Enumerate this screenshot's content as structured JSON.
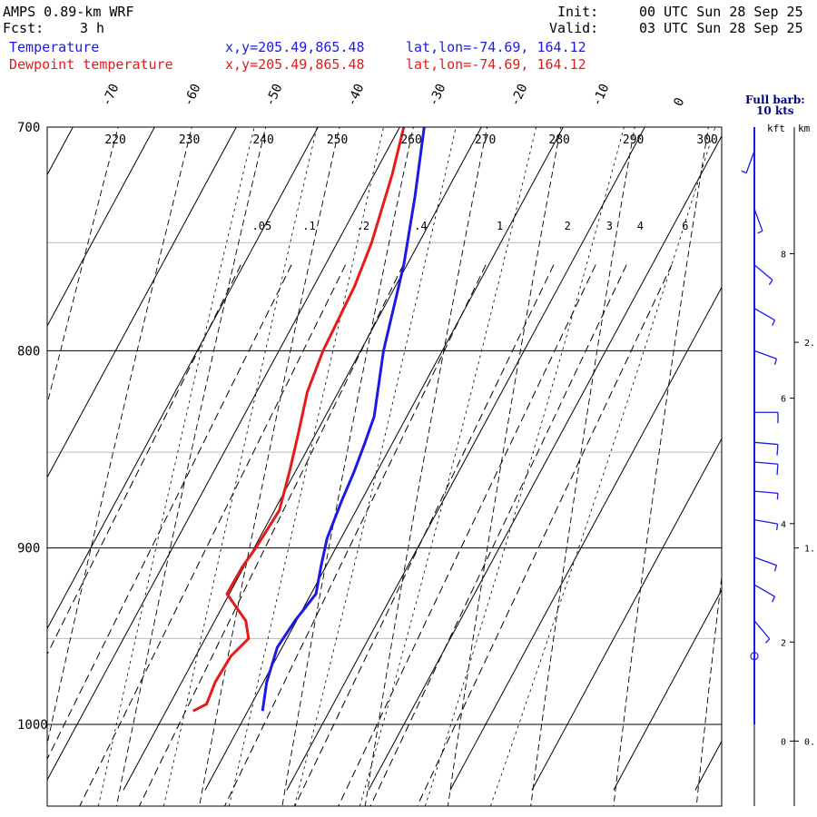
{
  "header": {
    "model": "AMPS 0.89-km WRF",
    "fcst_label": "Fcst:",
    "fcst_value": "3 h",
    "init_label": "Init:",
    "init_value": "00 UTC Sun 28 Sep 25",
    "valid_label": "Valid:",
    "valid_value": "03 UTC Sun 28 Sep 25"
  },
  "legend": [
    {
      "name": "Temperature",
      "xy": "x,y=205.49,865.48",
      "latlon": "lat,lon=-74.69, 164.12",
      "color": "#1a1ae6"
    },
    {
      "name": "Dewpoint temperature",
      "xy": "x,y=205.49,865.48",
      "latlon": "lat,lon=-74.69, 164.12",
      "color": "#e61a1a"
    }
  ],
  "barb_legend": {
    "line1": "Full barb:",
    "line2": "10 kts",
    "color": "#00008b"
  },
  "height_axis": {
    "left_unit": "kft",
    "right_unit": "km"
  },
  "chart_data": {
    "type": "line",
    "chart_kind": "skew-T log-p sounding",
    "y_axis": "pressure (hPa)",
    "ylim": [
      1040,
      700
    ],
    "xlim_celsius_at_1000hPa": [
      -40,
      20
    ],
    "pressure_ticks": [
      "700",
      "800",
      "900",
      "1000"
    ],
    "top_temperature_labels": [
      "-70",
      "-60",
      "-50",
      "-40",
      "-30",
      "-20",
      "-10",
      "0"
    ],
    "dry_adiabat_labels": [
      "220",
      "230",
      "240",
      "250",
      "260",
      "270",
      "280",
      "290",
      "300"
    ],
    "mixing_ratio_labels": [
      ".05",
      ".1",
      ".2",
      ".4",
      "1",
      "2",
      "3",
      "4",
      "6"
    ],
    "series": [
      {
        "name": "Temperature",
        "color": "#1a1ae6",
        "points": [
          {
            "p": 992,
            "t": -18.2
          },
          {
            "p": 975,
            "t": -19.6
          },
          {
            "p": 955,
            "t": -20.6
          },
          {
            "p": 940,
            "t": -20.2
          },
          {
            "p": 925,
            "t": -19.4
          },
          {
            "p": 910,
            "t": -20.6
          },
          {
            "p": 895,
            "t": -21.7
          },
          {
            "p": 875,
            "t": -22.4
          },
          {
            "p": 860,
            "t": -22.8
          },
          {
            "p": 845,
            "t": -23.4
          },
          {
            "p": 832,
            "t": -24.0
          },
          {
            "p": 800,
            "t": -27.2
          },
          {
            "p": 760,
            "t": -30.4
          },
          {
            "p": 730,
            "t": -33.5
          },
          {
            "p": 700,
            "t": -37.0
          }
        ]
      },
      {
        "name": "Dewpoint temperature",
        "color": "#e61a1a",
        "points": [
          {
            "p": 992,
            "t": -26.7
          },
          {
            "p": 988,
            "t": -25.5
          },
          {
            "p": 975,
            "t": -25.9
          },
          {
            "p": 960,
            "t": -25.7
          },
          {
            "p": 950,
            "t": -24.7
          },
          {
            "p": 940,
            "t": -26.2
          },
          {
            "p": 925,
            "t": -30.3
          },
          {
            "p": 910,
            "t": -30.2
          },
          {
            "p": 900,
            "t": -29.8
          },
          {
            "p": 880,
            "t": -29.4
          },
          {
            "p": 860,
            "t": -30.7
          },
          {
            "p": 840,
            "t": -32.2
          },
          {
            "p": 820,
            "t": -33.8
          },
          {
            "p": 800,
            "t": -34.6
          },
          {
            "p": 770,
            "t": -35.0
          },
          {
            "p": 750,
            "t": -35.8
          },
          {
            "p": 720,
            "t": -37.8
          },
          {
            "p": 700,
            "t": -39.5
          }
        ]
      }
    ],
    "wind_barbs": [
      {
        "p": 990,
        "dir": 0,
        "spd": 0,
        "calm": false
      },
      {
        "p": 960,
        "dir": 0,
        "spd": 0,
        "calm": true
      },
      {
        "p": 940,
        "dir": 140,
        "spd": 5
      },
      {
        "p": 920,
        "dir": 120,
        "spd": 5
      },
      {
        "p": 905,
        "dir": 110,
        "spd": 5
      },
      {
        "p": 885,
        "dir": 100,
        "spd": 5
      },
      {
        "p": 870,
        "dir": 95,
        "spd": 5
      },
      {
        "p": 855,
        "dir": 95,
        "spd": 10
      },
      {
        "p": 845,
        "dir": 95,
        "spd": 10
      },
      {
        "p": 830,
        "dir": 90,
        "spd": 10
      },
      {
        "p": 800,
        "dir": 110,
        "spd": 5
      },
      {
        "p": 780,
        "dir": 120,
        "spd": 5
      },
      {
        "p": 760,
        "dir": 130,
        "spd": 5
      },
      {
        "p": 735,
        "dir": 160,
        "spd": 5
      },
      {
        "p": 710,
        "dir": 200,
        "spd": 5
      }
    ],
    "height_ticks_kft": [
      {
        "label": "0",
        "p": 1010
      },
      {
        "label": "2",
        "p": 952
      },
      {
        "label": "4",
        "p": 887
      },
      {
        "label": "6",
        "p": 823
      },
      {
        "label": "8",
        "p": 755
      }
    ],
    "height_ticks_km": [
      {
        "label": "0.",
        "p": 1010
      },
      {
        "label": "1.",
        "p": 900
      },
      {
        "label": "2.",
        "p": 796
      }
    ],
    "grid": true
  }
}
